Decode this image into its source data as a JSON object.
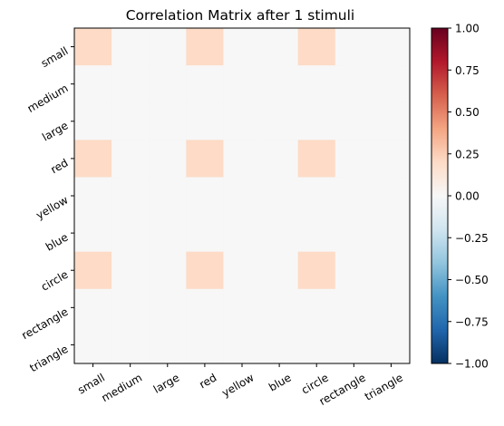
{
  "chart_data": {
    "type": "heatmap",
    "title": "Correlation Matrix after 1 stimuli",
    "x_categories": [
      "small",
      "medium",
      "large",
      "red",
      "yellow",
      "blue",
      "circle",
      "rectangle",
      "triangle"
    ],
    "y_categories": [
      "small",
      "medium",
      "large",
      "red",
      "yellow",
      "blue",
      "circle",
      "rectangle",
      "triangle"
    ],
    "matrix": [
      [
        0.2,
        0,
        0,
        0.2,
        0,
        0,
        0.2,
        0,
        0
      ],
      [
        0,
        0,
        0,
        0,
        0,
        0,
        0,
        0,
        0
      ],
      [
        0,
        0,
        0,
        0,
        0,
        0,
        0,
        0,
        0
      ],
      [
        0.2,
        0,
        0,
        0.2,
        0,
        0,
        0.2,
        0,
        0
      ],
      [
        0,
        0,
        0,
        0,
        0,
        0,
        0,
        0,
        0
      ],
      [
        0,
        0,
        0,
        0,
        0,
        0,
        0,
        0,
        0
      ],
      [
        0.2,
        0,
        0,
        0.2,
        0,
        0,
        0.2,
        0,
        0
      ],
      [
        0,
        0,
        0,
        0,
        0,
        0,
        0,
        0,
        0
      ],
      [
        0,
        0,
        0,
        0,
        0,
        0,
        0,
        0,
        0
      ]
    ],
    "colormap": "RdBu_r",
    "vmin": -1,
    "vmax": 1,
    "colorbar_ticks": [
      "1.00",
      "0.75",
      "0.50",
      "0.25",
      "0.00",
      "−0.25",
      "−0.50",
      "−0.75",
      "−1.00"
    ],
    "colorbar_stops": [
      "#053061",
      "#2166ac",
      "#4393c3",
      "#92c5de",
      "#d1e5f0",
      "#f7f7f7",
      "#fddbc7",
      "#f4a582",
      "#d6604d",
      "#b2182b",
      "#67001f"
    ],
    "grid": false,
    "legend": "colorbar-right"
  }
}
